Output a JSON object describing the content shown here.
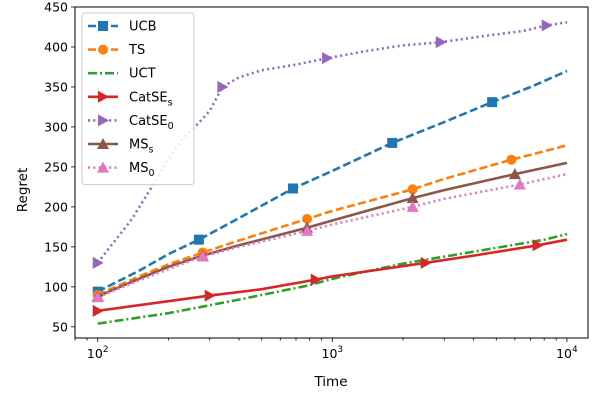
{
  "chart_data": {
    "type": "line",
    "xlabel": "Time",
    "ylabel": "Regret",
    "xscale": "log",
    "xlim": [
      80,
      12300
    ],
    "ylim": [
      36,
      450
    ],
    "grid": false,
    "legend_position": "top-left",
    "x_ticks": [
      {
        "value": 100,
        "base": "10",
        "exp": "2"
      },
      {
        "value": 1000,
        "base": "10",
        "exp": "3"
      },
      {
        "value": 10000,
        "base": "10",
        "exp": "4"
      }
    ],
    "y_ticks": [
      {
        "value": 50,
        "label": "50"
      },
      {
        "value": 100,
        "label": "100"
      },
      {
        "value": 150,
        "label": "150"
      },
      {
        "value": 200,
        "label": "200"
      },
      {
        "value": 250,
        "label": "250"
      },
      {
        "value": 300,
        "label": "300"
      },
      {
        "value": 350,
        "label": "350"
      },
      {
        "value": 400,
        "label": "400"
      },
      {
        "value": 450,
        "label": "450"
      }
    ],
    "series": [
      {
        "name": "UCB",
        "name_base": "UCB",
        "name_sub": "",
        "color": "#1f77b4",
        "linestyle": "dashed",
        "marker": "square",
        "x": [
          100,
          150,
          200,
          270,
          400,
          680,
          1000,
          1800,
          3000,
          4800,
          7000,
          10000
        ],
        "y": [
          94,
          120,
          141,
          159,
          186,
          223,
          245,
          280,
          306,
          331,
          350,
          370
        ],
        "marker_x": [
          100,
          270,
          680,
          1800,
          4800
        ]
      },
      {
        "name": "TS",
        "name_base": "TS",
        "name_sub": "",
        "color": "#ff7f0e",
        "linestyle": "dashed",
        "marker": "circle",
        "x": [
          100,
          150,
          200,
          280,
          400,
          780,
          1000,
          2200,
          3000,
          5800,
          10000
        ],
        "y": [
          90,
          113,
          128,
          143,
          158,
          185,
          195,
          222,
          235,
          259,
          277
        ],
        "marker_x": [
          100,
          280,
          780,
          2200,
          5800
        ]
      },
      {
        "name": "UCT",
        "name_base": "UCT",
        "name_sub": "",
        "color": "#2ca02c",
        "linestyle": "dashdot",
        "marker": "none",
        "x": [
          100,
          200,
          400,
          800,
          1000,
          2000,
          4000,
          8000,
          10000
        ],
        "y": [
          54,
          67,
          84,
          102,
          110,
          129,
          144,
          159,
          166
        ],
        "marker_x": []
      },
      {
        "name": "CatSEs",
        "name_base": "CatSE",
        "name_sub": "s",
        "color": "#d62728",
        "linestyle": "solid",
        "marker": "triangle-right",
        "x": [
          100,
          150,
          200,
          300,
          500,
          850,
          1000,
          2500,
          4000,
          7500,
          10000
        ],
        "y": [
          70,
          77,
          82,
          89,
          97,
          109,
          113,
          130,
          139,
          152,
          159
        ],
        "marker_x": [
          100,
          300,
          850,
          2500,
          7500
        ]
      },
      {
        "name": "CatSE0",
        "name_base": "CatSE",
        "name_sub": "0",
        "color": "#9467bd",
        "linestyle": "dotted",
        "marker": "triangle-right",
        "x": [
          100,
          140,
          170,
          200,
          230,
          260,
          300,
          340,
          400,
          500,
          700,
          950,
          1400,
          2000,
          2900,
          4500,
          6500,
          8200,
          10000
        ],
        "y": [
          130,
          185,
          225,
          260,
          285,
          300,
          320,
          350,
          362,
          371,
          378,
          386,
          395,
          402,
          406,
          414,
          420,
          427,
          431
        ],
        "marker_x": [
          100,
          340,
          950,
          2900,
          8200
        ]
      },
      {
        "name": "MSs",
        "name_base": "MS",
        "name_sub": "s",
        "color": "#8c564b",
        "linestyle": "solid",
        "marker": "triangle-up",
        "x": [
          100,
          150,
          200,
          280,
          400,
          780,
          1000,
          2200,
          3000,
          6000,
          10000
        ],
        "y": [
          88,
          110,
          125,
          139,
          152,
          174,
          183,
          211,
          221,
          241,
          255
        ],
        "marker_x": [
          100,
          280,
          780,
          2200,
          6000
        ]
      },
      {
        "name": "MS0",
        "name_base": "MS",
        "name_sub": "0",
        "color": "#e377c2",
        "linestyle": "dotted",
        "marker": "triangle-up",
        "x": [
          100,
          150,
          200,
          280,
          400,
          780,
          1000,
          2200,
          3000,
          6300,
          10000
        ],
        "y": [
          87,
          108,
          122,
          138,
          150,
          170,
          178,
          200,
          210,
          228,
          241
        ],
        "marker_x": [
          100,
          280,
          780,
          2200,
          6300
        ]
      }
    ]
  }
}
